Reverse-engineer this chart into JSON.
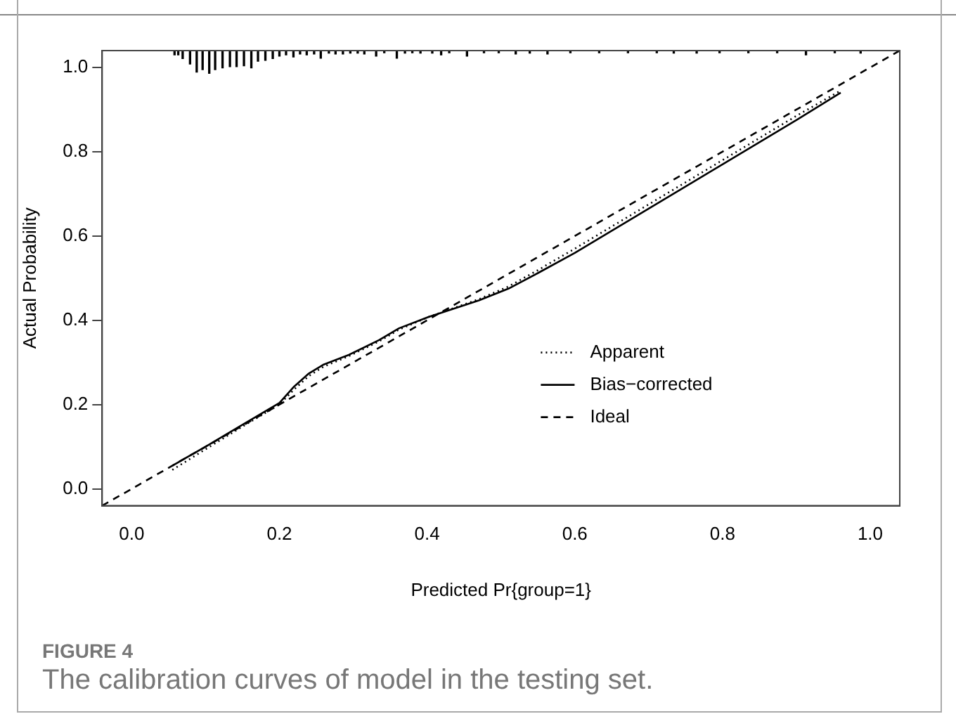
{
  "chart_data": {
    "type": "line",
    "xlabel": "Predicted Pr{group=1}",
    "ylabel": "Actual Probability",
    "annotations": [
      "FIGURE 4",
      "The calibration curves of model in the testing set."
    ],
    "xlim": [
      -0.04,
      1.04
    ],
    "ylim": [
      -0.04,
      1.04
    ],
    "xticks": [
      {
        "value": 0,
        "label": "0.0"
      },
      0.2,
      0.4,
      0.6,
      0.8,
      {
        "value": 1,
        "label": "1.0"
      }
    ],
    "yticks": [
      {
        "value": 0,
        "label": "0.0"
      },
      0.2,
      0.4,
      0.6,
      0.8,
      {
        "value": 1,
        "label": "1.0"
      }
    ],
    "grid": false,
    "legend": "bottom right",
    "marker": "none",
    "series": [
      {
        "name": "Apparent",
        "color": "#000000",
        "line_style": "dotted",
        "x": [
          0.055,
          0.1,
          0.15,
          0.2,
          0.22,
          0.24,
          0.26,
          0.294,
          0.335,
          0.362,
          0.402,
          0.47,
          0.51,
          0.551,
          0.6,
          0.7,
          0.8,
          0.9,
          0.96
        ],
        "values": [
          0.045,
          0.094,
          0.148,
          0.2,
          0.236,
          0.268,
          0.29,
          0.315,
          0.35,
          0.378,
          0.408,
          0.45,
          0.48,
          0.52,
          0.57,
          0.675,
          0.78,
          0.885,
          0.945
        ]
      },
      {
        "name": "Bias−corrected",
        "color": "#000000",
        "line_style": "solid",
        "x": [
          0.055,
          0.1,
          0.15,
          0.2,
          0.22,
          0.24,
          0.26,
          0.294,
          0.335,
          0.362,
          0.402,
          0.47,
          0.51,
          0.551,
          0.6,
          0.7,
          0.8,
          0.9,
          0.96
        ],
        "values": [
          0.055,
          0.1,
          0.152,
          0.204,
          0.243,
          0.274,
          0.295,
          0.318,
          0.353,
          0.381,
          0.408,
          0.447,
          0.475,
          0.513,
          0.56,
          0.665,
          0.77,
          0.875,
          0.94
        ]
      },
      {
        "name": "Ideal",
        "color": "#000000",
        "line_style": "dashed",
        "x": [
          -0.04,
          1.04
        ],
        "values": [
          -0.04,
          1.04
        ]
      },
      {
        "type": "bar",
        "color": "#000000",
        "x": [
          0.058,
          0.063,
          0.069,
          0.079,
          0.088,
          0.096,
          0.105,
          0.113,
          0.123,
          0.133,
          0.142,
          0.152,
          0.162,
          0.171,
          0.181,
          0.191,
          0.2,
          0.209,
          0.219,
          0.228,
          0.237,
          0.247,
          0.256,
          0.267,
          0.276,
          0.286,
          0.296,
          0.306,
          0.315,
          0.331,
          0.342,
          0.359,
          0.37,
          0.38,
          0.391,
          0.407,
          0.419,
          0.43,
          0.454,
          0.477,
          0.497,
          0.52,
          0.539,
          0.563,
          0.594,
          0.633,
          0.672,
          0.711,
          0.734,
          0.765,
          0.796,
          0.835,
          0.874,
          0.913,
          0.952,
          0.987
        ],
        "base": [
          1.04,
          1.04,
          1.04,
          1.04,
          1.04,
          1.04,
          1.04,
          1.04,
          1.04,
          1.04,
          1.04,
          1.04,
          1.04,
          1.04,
          1.04,
          1.04,
          1.04,
          1.04,
          1.04,
          1.04,
          1.04,
          1.04,
          1.04,
          1.04,
          1.04,
          1.04,
          1.04,
          1.04,
          1.04,
          1.04,
          1.04,
          1.04,
          1.04,
          1.04,
          1.04,
          1.04,
          1.04,
          1.04,
          1.04,
          1.04,
          1.04,
          1.04,
          1.04,
          1.04,
          1.04,
          1.04,
          1.04,
          1.04,
          1.04,
          1.04,
          1.04,
          1.04,
          1.04,
          1.04,
          1.04,
          1.04
        ],
        "values": [
          -0.01,
          -0.01,
          -0.019,
          -0.032,
          -0.051,
          -0.045,
          -0.054,
          -0.045,
          -0.041,
          -0.038,
          -0.038,
          -0.036,
          -0.041,
          -0.025,
          -0.023,
          -0.019,
          -0.013,
          -0.01,
          -0.015,
          -0.008,
          -0.01,
          -0.008,
          -0.018,
          -0.006,
          -0.008,
          -0.008,
          -0.006,
          -0.006,
          -0.008,
          -0.013,
          -0.005,
          -0.018,
          -0.006,
          -0.005,
          -0.006,
          -0.006,
          -0.01,
          -0.005,
          -0.013,
          -0.005,
          -0.005,
          -0.008,
          -0.006,
          -0.008,
          -0.005,
          -0.005,
          -0.005,
          -0.005,
          -0.006,
          -0.006,
          -0.005,
          -0.005,
          -0.005,
          -0.01,
          -0.005,
          -0.006
        ]
      }
    ]
  }
}
